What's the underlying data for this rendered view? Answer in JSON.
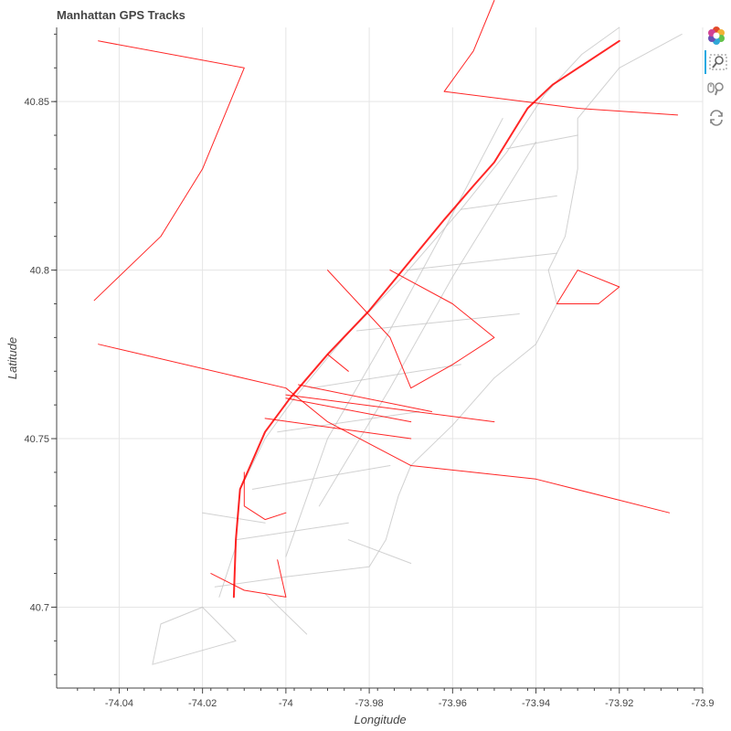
{
  "chart_data": {
    "type": "line",
    "title": "Manhattan GPS Tracks",
    "xlabel": "Longitude",
    "ylabel": "Latitude",
    "xlim": [
      -74.055,
      -73.9
    ],
    "ylim": [
      40.676,
      40.872
    ],
    "x_ticks": [
      {
        "value": -74.04,
        "label": "-74.04"
      },
      {
        "value": -74.02,
        "label": "-74.02"
      },
      {
        "value": -74.0,
        "label": "-74"
      },
      {
        "value": -73.98,
        "label": "-73.98"
      },
      {
        "value": -73.96,
        "label": "-73.96"
      },
      {
        "value": -73.94,
        "label": "-73.94"
      },
      {
        "value": -73.92,
        "label": "-73.92"
      },
      {
        "value": -73.9,
        "label": "-73.9"
      }
    ],
    "y_ticks": [
      {
        "value": 40.7,
        "label": "40.7"
      },
      {
        "value": 40.75,
        "label": "40.75"
      },
      {
        "value": 40.8,
        "label": "40.8"
      },
      {
        "value": 40.85,
        "label": "40.85"
      }
    ],
    "grid": true,
    "colors": {
      "streets": "#bdbdbd",
      "tracks": "#ff0000",
      "grid": "#e5e5e5",
      "axis": "#444444"
    },
    "series": [
      {
        "role": "street network",
        "color": "#bdbdbd",
        "lines": [
          [
            [
              -74.016,
              40.703
            ],
            [
              -74.012,
              40.718
            ],
            [
              -74.011,
              40.735
            ],
            [
              -74.005,
              40.75
            ],
            [
              -73.998,
              40.762
            ],
            [
              -73.986,
              40.78
            ],
            [
              -73.972,
              40.798
            ],
            [
              -73.958,
              40.818
            ],
            [
              -73.947,
              40.835
            ],
            [
              -73.938,
              40.852
            ],
            [
              -73.929,
              40.864
            ],
            [
              -73.92,
              40.872
            ]
          ],
          [
            [
              -74.017,
              40.706
            ],
            [
              -74.0,
              40.709
            ],
            [
              -73.98,
              40.712
            ],
            [
              -73.976,
              40.72
            ],
            [
              -73.973,
              40.733
            ],
            [
              -73.97,
              40.742
            ],
            [
              -73.96,
              40.754
            ],
            [
              -73.95,
              40.768
            ],
            [
              -73.94,
              40.778
            ],
            [
              -73.935,
              40.79
            ],
            [
              -73.937,
              40.8
            ],
            [
              -73.933,
              40.81
            ],
            [
              -73.93,
              40.83
            ],
            [
              -73.93,
              40.845
            ],
            [
              -73.92,
              40.86
            ],
            [
              -73.905,
              40.87
            ]
          ],
          [
            [
              -74.012,
              40.72
            ],
            [
              -73.985,
              40.725
            ]
          ],
          [
            [
              -74.008,
              40.735
            ],
            [
              -73.975,
              40.742
            ]
          ],
          [
            [
              -74.002,
              40.752
            ],
            [
              -73.968,
              40.758
            ]
          ],
          [
            [
              -73.994,
              40.765
            ],
            [
              -73.958,
              40.772
            ]
          ],
          [
            [
              -73.983,
              40.782
            ],
            [
              -73.944,
              40.787
            ]
          ],
          [
            [
              -73.971,
              40.8
            ],
            [
              -73.935,
              40.805
            ]
          ],
          [
            [
              -73.958,
              40.818
            ],
            [
              -73.935,
              40.822
            ]
          ],
          [
            [
              -73.947,
              40.836
            ],
            [
              -73.93,
              40.84
            ]
          ],
          [
            [
              -74.0,
              40.715
            ],
            [
              -73.99,
              40.75
            ],
            [
              -73.976,
              40.78
            ],
            [
              -73.962,
              40.812
            ],
            [
              -73.948,
              40.845
            ]
          ],
          [
            [
              -73.992,
              40.73
            ],
            [
              -73.975,
              40.765
            ],
            [
              -73.96,
              40.798
            ],
            [
              -73.94,
              40.838
            ]
          ],
          [
            [
              -74.02,
              40.728
            ],
            [
              -74.005,
              40.725
            ]
          ],
          [
            [
              -73.985,
              40.72
            ],
            [
              -73.97,
              40.713
            ]
          ],
          [
            [
              -74.005,
              40.704
            ],
            [
              -73.995,
              40.692
            ]
          ],
          [
            [
              -74.02,
              40.7
            ],
            [
              -74.012,
              40.69
            ],
            [
              -74.032,
              40.683
            ],
            [
              -74.03,
              40.695
            ],
            [
              -74.02,
              40.7
            ]
          ]
        ]
      },
      {
        "role": "gps tracks",
        "color": "#ff0000",
        "lines": [
          [
            [
              -74.0125,
              40.703
            ],
            [
              -74.012,
              40.72
            ],
            [
              -74.011,
              40.735
            ],
            [
              -74.005,
              40.752
            ],
            [
              -73.999,
              40.762
            ],
            [
              -73.99,
              40.775
            ],
            [
              -73.98,
              40.788
            ],
            [
              -73.972,
              40.8
            ],
            [
              -73.962,
              40.815
            ],
            [
              -73.955,
              40.825
            ],
            [
              -73.95,
              40.832
            ],
            [
              -73.946,
              40.84
            ],
            [
              -73.942,
              40.848
            ],
            [
              -73.936,
              40.855
            ],
            [
              -73.92,
              40.868
            ]
          ],
          [
            [
              -74.005,
              40.756
            ],
            [
              -73.97,
              40.75
            ]
          ],
          [
            [
              -74.0,
              40.762
            ],
            [
              -73.97,
              40.755
            ]
          ],
          [
            [
              -73.997,
              40.766
            ],
            [
              -73.965,
              40.758
            ]
          ],
          [
            [
              -74.0,
              40.763
            ],
            [
              -73.95,
              40.755
            ]
          ],
          [
            [
              -73.99,
              40.775
            ],
            [
              -73.985,
              40.77
            ]
          ],
          [
            [
              -74.045,
              40.778
            ],
            [
              -74.0,
              40.765
            ],
            [
              -73.99,
              40.755
            ],
            [
              -73.97,
              40.742
            ],
            [
              -73.955,
              40.74
            ],
            [
              -73.94,
              40.738
            ],
            [
              -73.908,
              40.728
            ]
          ],
          [
            [
              -74.046,
              40.791
            ],
            [
              -74.03,
              40.81
            ],
            [
              -74.02,
              40.83
            ],
            [
              -74.01,
              40.86
            ],
            [
              -74.045,
              40.868
            ]
          ],
          [
            [
              -73.962,
              40.853
            ],
            [
              -73.955,
              40.865
            ],
            [
              -73.95,
              40.88
            ]
          ],
          [
            [
              -73.962,
              40.853
            ],
            [
              -73.93,
              40.848
            ],
            [
              -73.906,
              40.846
            ]
          ],
          [
            [
              -73.99,
              40.8
            ],
            [
              -73.975,
              40.78
            ],
            [
              -73.97,
              40.765
            ],
            [
              -73.96,
              40.772
            ],
            [
              -73.95,
              40.78
            ],
            [
              -73.96,
              40.79
            ],
            [
              -73.975,
              40.8
            ]
          ],
          [
            [
              -74.01,
              40.74
            ],
            [
              -74.01,
              40.73
            ],
            [
              -74.005,
              40.726
            ],
            [
              -74.0,
              40.728
            ]
          ],
          [
            [
              -74.018,
              40.71
            ],
            [
              -74.01,
              40.705
            ],
            [
              -74.0,
              40.703
            ],
            [
              -74.002,
              40.714
            ]
          ],
          [
            [
              -73.935,
              40.79
            ],
            [
              -73.93,
              40.8
            ],
            [
              -73.92,
              40.795
            ],
            [
              -73.925,
              40.79
            ],
            [
              -73.935,
              40.79
            ]
          ]
        ]
      }
    ]
  },
  "toolbar": {
    "tools": [
      {
        "name": "bokeh-logo",
        "icon": "bokeh-logo-icon"
      },
      {
        "name": "box-zoom",
        "icon": "box-zoom-icon",
        "active": true
      },
      {
        "name": "wheel-zoom",
        "icon": "wheel-zoom-icon"
      },
      {
        "name": "reset",
        "icon": "reset-icon"
      }
    ]
  }
}
